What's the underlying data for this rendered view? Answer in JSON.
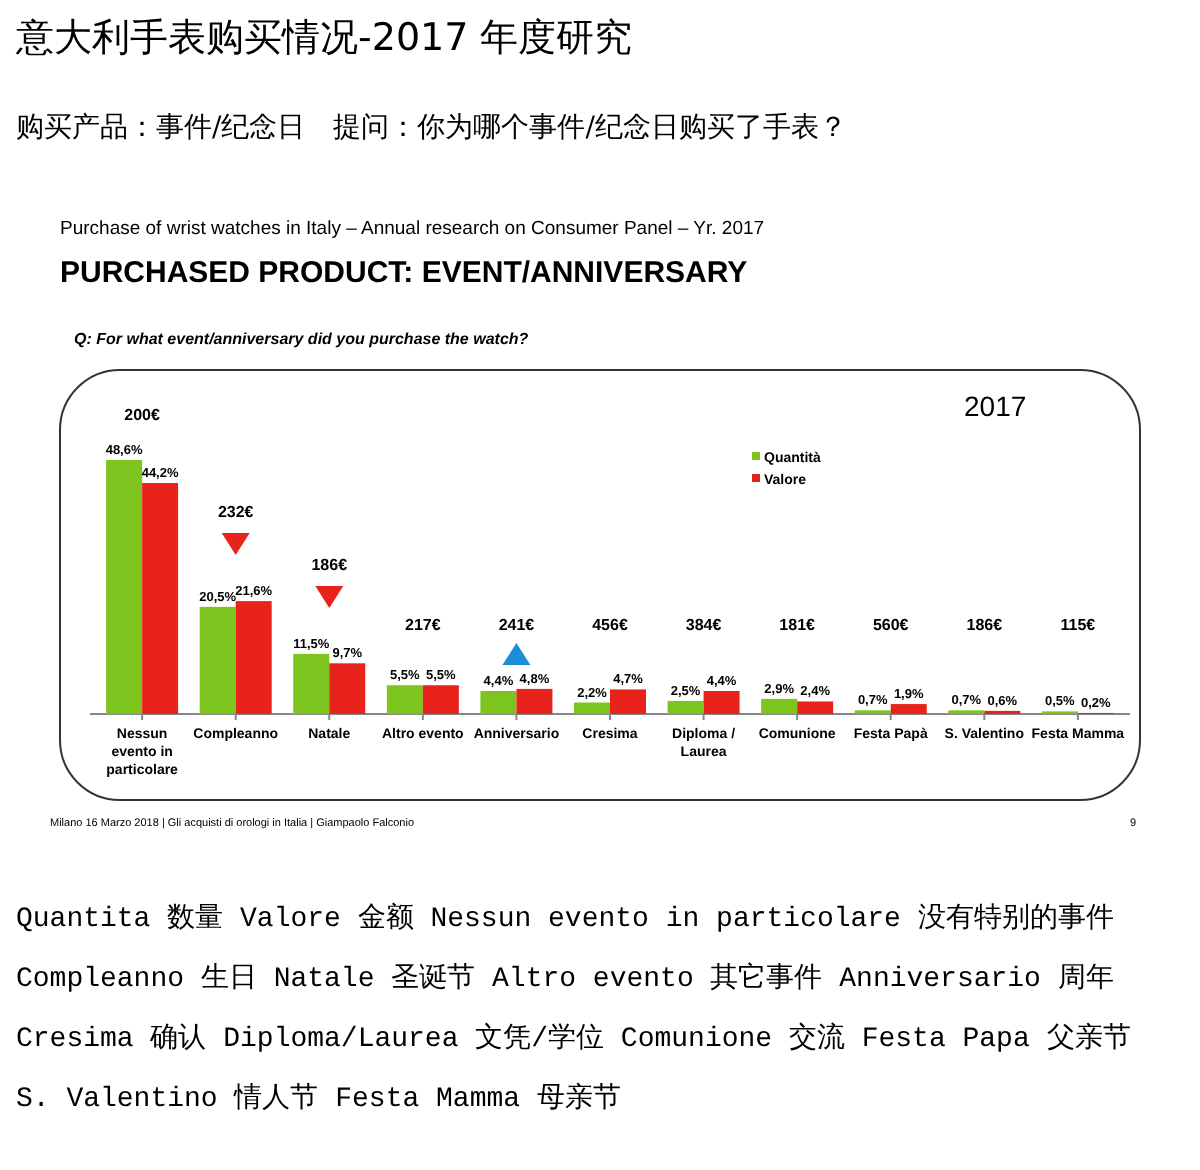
{
  "chart_data": {
    "type": "bar",
    "title": "意大利手表购买情况-2017 年度研究",
    "subtitle": "购买产品：事件/纪念日　提问：你为哪个事件/纪念日购买了手表？",
    "categories": [
      "Nessun evento in particolare",
      "Compleanno",
      "Natale",
      "Altro evento",
      "Anniversario",
      "Cresima",
      "Diploma / Laurea",
      "Comunione",
      "Festa Papà",
      "S. Valentino",
      "Festa Mamma"
    ],
    "series": [
      {
        "name": "Quantità",
        "color": "#7dc41f",
        "values": [
          48.6,
          20.5,
          11.5,
          5.5,
          4.4,
          2.2,
          2.5,
          2.9,
          0.7,
          0.7,
          0.5
        ],
        "value_labels": [
          "48,6%",
          "20,5%",
          "11,5%",
          "5,5%",
          "4,4%",
          "2,2%",
          "2,5%",
          "2,9%",
          "0,7%",
          "0,7%",
          "0,5%"
        ]
      },
      {
        "name": "Valore",
        "color": "#e8231c",
        "values": [
          44.2,
          21.6,
          9.7,
          5.5,
          4.8,
          4.7,
          4.4,
          2.4,
          1.9,
          0.6,
          0.2
        ],
        "value_labels": [
          "44,2%",
          "21,6%",
          "9,7%",
          "5,5%",
          "4,8%",
          "4,7%",
          "4,4%",
          "2,4%",
          "1,9%",
          "0,6%",
          "0,2%"
        ]
      }
    ],
    "legend": "top right",
    "annotations": [
      "Purchase of wrist watches in Italy – Annual research on Consumer Panel – Yr. 2017",
      "PURCHASED PRODUCT: EVENT/ANNIVERSARY",
      "Q: For what event/anniversary did you purchase the watch?",
      "2017",
      "Milano 16 Marzo 2018 | Gli acquisti di orologi in Italia | Giampaolo Falconio",
      "9",
      "Quantita 数量 Valore 金额 Nessun evento in particolare 没有特别的事件",
      "Compleanno 生日 Natale 圣诞节 Altro evento 其它事件 Anniversario 周年",
      "Cresima 确认 Diploma/Laurea 文凭/学位 Comunione 交流 Festa Papa 父亲节",
      "S. Valentino 情人节 Festa Mamma 母亲节",
      "200€",
      "232€",
      "186€",
      "217€",
      "241€",
      "456€",
      "384€",
      "181€",
      "560€",
      "186€",
      "115€"
    ]
  }
}
